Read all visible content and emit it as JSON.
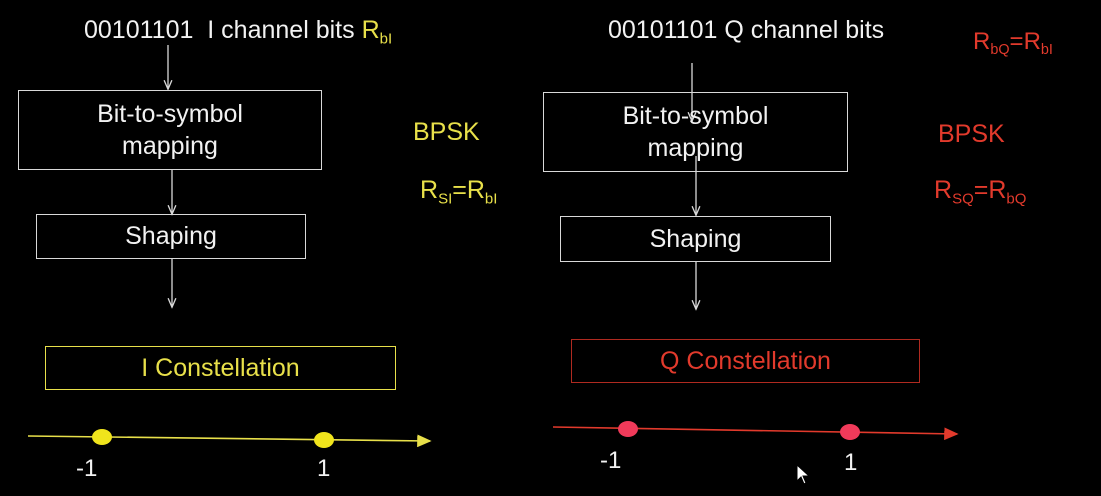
{
  "colors": {
    "background": "#000000",
    "box_border": "#d9d9d9",
    "text_white": "#f2f2f2",
    "i_accent": "#e8e04a",
    "q_accent": "#e23a2c",
    "q_box_border": "#b02a20"
  },
  "i_channel": {
    "bits": "00101101",
    "label": "I channel bits",
    "rate": {
      "base": "R",
      "sub": "bI"
    },
    "mapping_line1": "Bit-to-symbol",
    "mapping_line2": "mapping",
    "modulation": "BPSK",
    "symbol_rate": {
      "lhs_base": "R",
      "lhs_sub": "SI",
      "eq": "=",
      "rhs_base": "R",
      "rhs_sub": "bI"
    },
    "shaping": "Shaping",
    "constellation": "I Constellation",
    "points": [
      {
        "value": -1,
        "label": "-1"
      },
      {
        "value": 1,
        "label": "1"
      }
    ]
  },
  "q_channel": {
    "bits": "00101101",
    "label": "Q channel bits",
    "rate": {
      "lhs_base": "R",
      "lhs_sub": "bQ",
      "eq": "=",
      "rhs_base": "R",
      "rhs_sub": "bI"
    },
    "mapping_line1": "Bit-to-symbol",
    "mapping_line2": "mapping",
    "modulation": "BPSK",
    "symbol_rate": {
      "lhs_base": "R",
      "lhs_sub": "SQ",
      "eq": "=",
      "rhs_base": "R",
      "rhs_sub": "bQ"
    },
    "shaping": "Shaping",
    "constellation": "Q Constellation",
    "points": [
      {
        "value": -1,
        "label": "-1"
      },
      {
        "value": 1,
        "label": "1"
      }
    ]
  }
}
